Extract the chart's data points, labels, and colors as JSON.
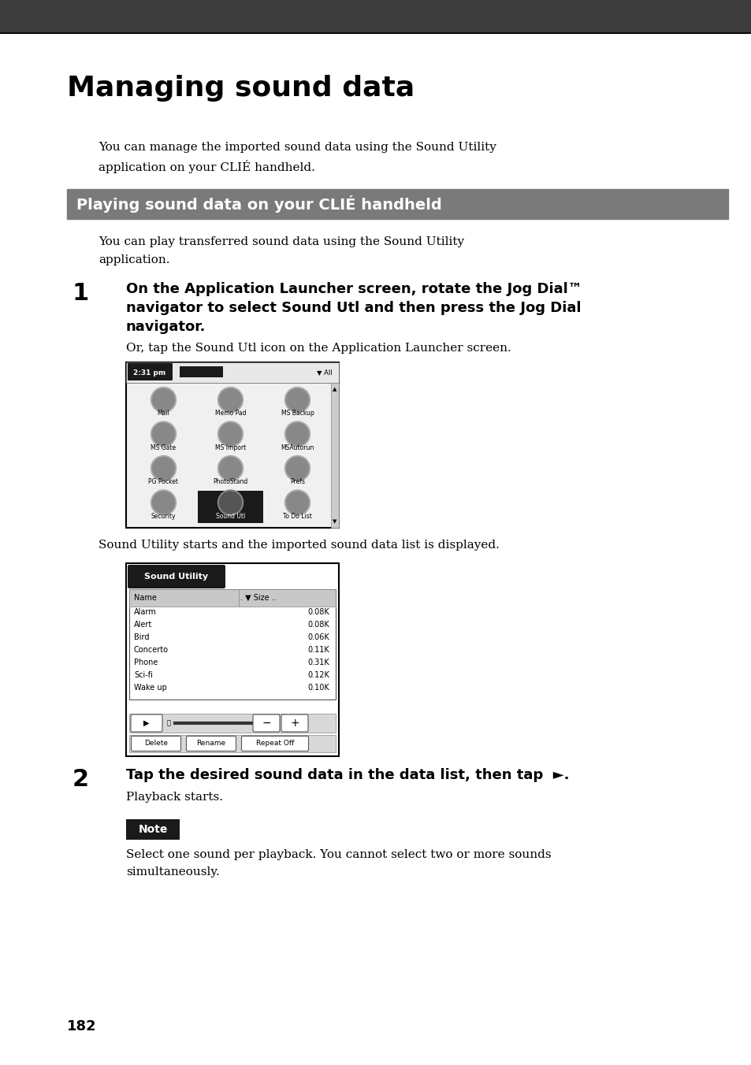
{
  "page_bg": "#ffffff",
  "top_bar_color": "#3d3d3d",
  "title": "Managing sound data",
  "section_header": "Playing sound data on your CLIÉ handheld",
  "section_header_bg": "#7a7a7a",
  "section_header_color": "#ffffff",
  "body_text_color": "#000000",
  "page_number": "182",
  "intro_text1": "You can manage the imported sound data using the Sound Utility",
  "intro_text2": "application on your CLIÉ handheld.",
  "section_intro1": "You can play transferred sound data using the Sound Utility",
  "section_intro2": "application.",
  "step1_line1": "On the Application Launcher screen, rotate the Jog Dial™",
  "step1_line2": "navigator to select Sound Utl and then press the Jog Dial",
  "step1_line3": "navigator.",
  "step1_sub": "Or, tap the Sound Utl icon on the Application Launcher screen.",
  "step1_middle": "Sound Utility starts and the imported sound data list is displayed.",
  "step2_line1": "Tap the desired sound data in the data list, then tap  ►.",
  "step2_sub": "Playback starts.",
  "note_label": "Note",
  "note_bg": "#1a1a1a",
  "note_text1": "Select one sound per playback. You cannot select two or more sounds",
  "note_text2": "simultaneously.",
  "sound_items": [
    [
      "Alarm",
      "0.08K"
    ],
    [
      "Alert",
      "0.08K"
    ],
    [
      "Bird",
      "0.06K"
    ],
    [
      "Concerto",
      "0.11K"
    ],
    [
      "Phone",
      "0.31K"
    ],
    [
      "Sci-fi",
      "0.12K"
    ],
    [
      "Wake up",
      "0.10K"
    ]
  ]
}
